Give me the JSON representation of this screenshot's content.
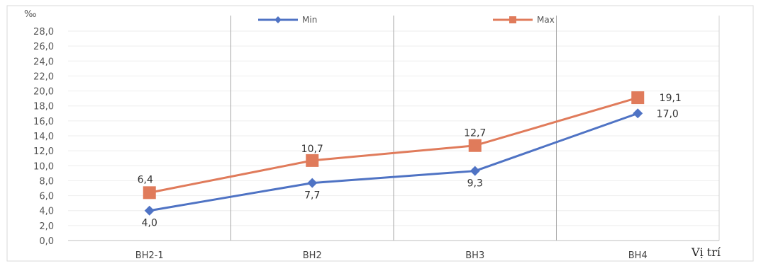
{
  "chart_data": {
    "type": "line",
    "ylabel": "‰",
    "xlabel": "Vị trí",
    "categories": [
      "BH2-1",
      "BH2",
      "BH3",
      "BH4"
    ],
    "ylim": [
      0,
      28
    ],
    "yticks": [
      "0,0",
      "2,0",
      "4,0",
      "6,0",
      "8,0",
      "10,0",
      "12,0",
      "14,0",
      "16,0",
      "18,0",
      "20,0",
      "22,0",
      "24,0",
      "26,0",
      "28,0"
    ],
    "series": [
      {
        "name": "Min",
        "values": [
          4.0,
          7.7,
          9.3,
          17.0
        ],
        "labels": [
          "4,0",
          "7,7",
          "9,3",
          "17,0"
        ],
        "color": "#4f73c4",
        "marker": "diamond"
      },
      {
        "name": "Max",
        "values": [
          6.4,
          10.7,
          12.7,
          19.1
        ],
        "labels": [
          "6,4",
          "10,7",
          "12,7",
          "19,1"
        ],
        "color": "#e07b5b",
        "marker": "square"
      }
    ],
    "grid": true,
    "legend": "top-center"
  }
}
